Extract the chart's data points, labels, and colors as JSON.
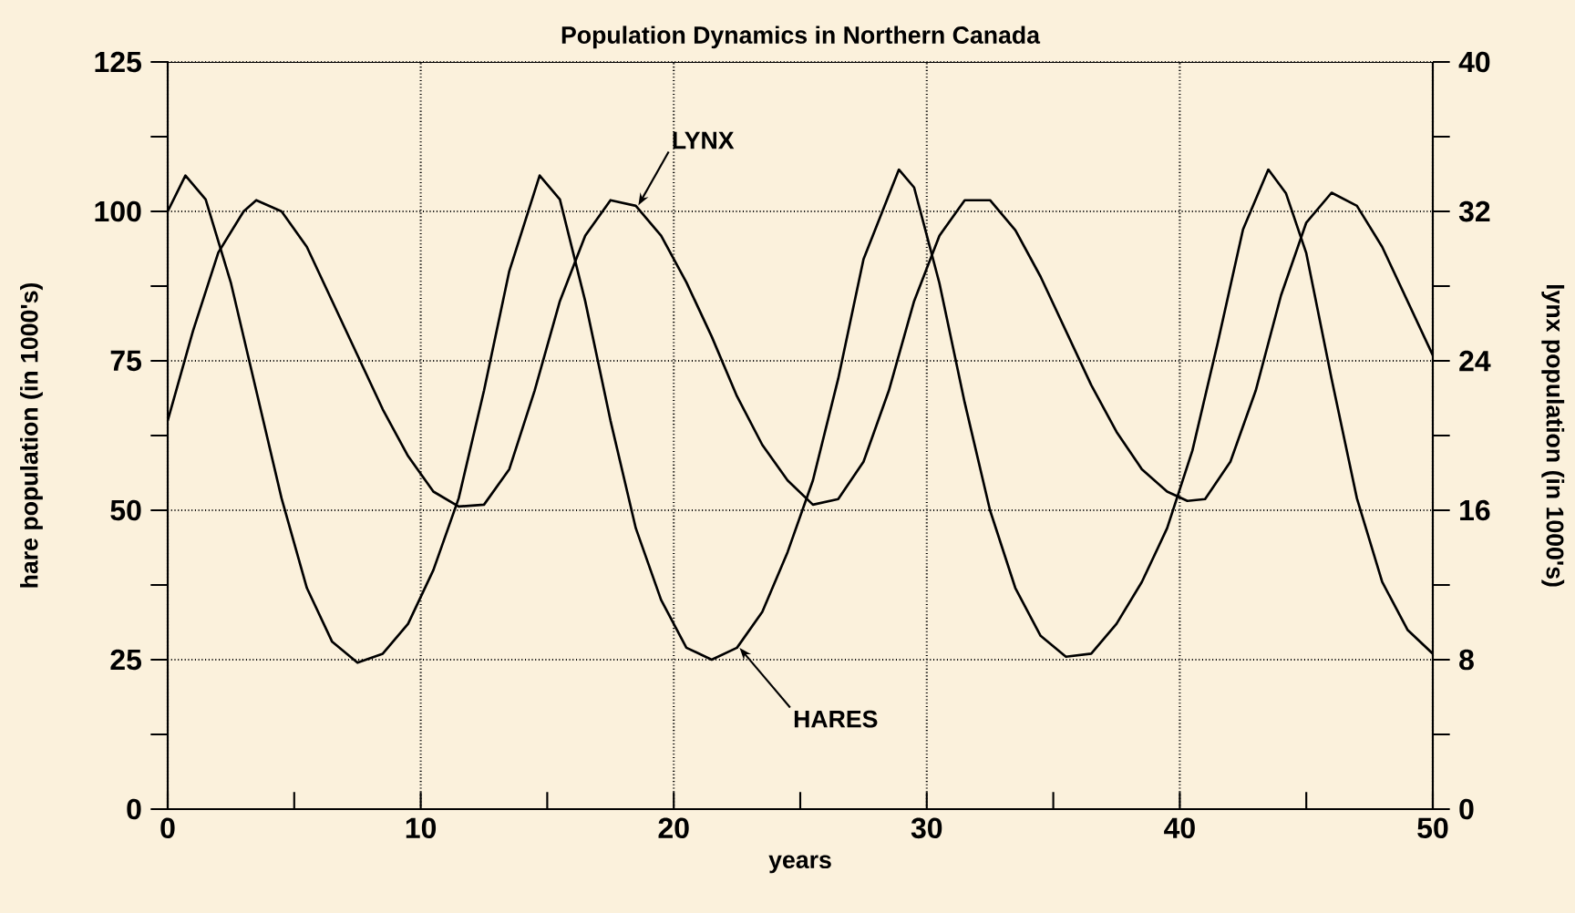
{
  "chart_data": {
    "type": "line",
    "title": "Population Dynamics in Northern Canada",
    "xlabel": "years",
    "ylabel": "hare population (in 1000's)",
    "y2label": "lynx population (in 1000's)",
    "xlim": [
      0,
      50
    ],
    "xticks": [
      0,
      {
        "value": 5,
        "label": null
      },
      10,
      {
        "value": 15,
        "label": null
      },
      20,
      {
        "value": 25,
        "label": null
      },
      30,
      {
        "value": 35,
        "label": null
      },
      40,
      {
        "value": 45,
        "label": null
      },
      50
    ],
    "ylim": [
      0,
      125
    ],
    "yticks": [
      0,
      {
        "value": 12.5,
        "label": null
      },
      25,
      {
        "value": 37.5,
        "label": null
      },
      50,
      {
        "value": 62.5,
        "label": null
      },
      75,
      {
        "value": 87.5,
        "label": null
      },
      100,
      {
        "value": 112.5,
        "label": null
      },
      125
    ],
    "y2lim": [
      0,
      40
    ],
    "y2ticks": [
      0,
      {
        "value": 4,
        "label": null
      },
      8,
      {
        "value": 12,
        "label": null
      },
      16,
      {
        "value": 20,
        "label": null
      },
      24,
      {
        "value": 28,
        "label": null
      },
      32,
      {
        "value": 36,
        "label": null
      },
      40
    ],
    "grid": true,
    "series": [
      {
        "color": "#000000",
        "x": [
          0,
          0.7,
          1.5,
          2.5,
          3.5,
          4.5,
          5.5,
          6.5,
          7.5,
          8.5,
          9.5,
          10.5,
          11.5,
          12.5,
          13.5,
          14.7,
          15.5,
          16.5,
          17.5,
          18.5,
          19.5,
          20.5,
          21.5,
          22.5,
          23.5,
          24.5,
          25.5,
          26.5,
          27.5,
          28.9,
          29.5,
          30.5,
          31.5,
          32.5,
          33.5,
          34.5,
          35.5,
          36.5,
          37.5,
          38.5,
          39.5,
          40.5,
          41.5,
          42.5,
          43.5,
          44.2,
          45,
          46,
          47,
          48,
          49,
          50
        ],
        "values": [
          100,
          106,
          102,
          88,
          70,
          52,
          37,
          28,
          24.5,
          26,
          31,
          40,
          52,
          70,
          90,
          106,
          102,
          85,
          65,
          47,
          35,
          27,
          25,
          27,
          33,
          43,
          55,
          72,
          92,
          107,
          104,
          88,
          68,
          50,
          37,
          29,
          25.5,
          26,
          31,
          38,
          47,
          60,
          78,
          97,
          107,
          103,
          93,
          72,
          52,
          38,
          30,
          26
        ]
      },
      {
        "color": "#000000",
        "axis": "y2",
        "x": [
          0,
          1,
          2,
          3,
          3.5,
          4.5,
          5.5,
          6.5,
          7.5,
          8.5,
          9.5,
          10.5,
          11.5,
          12.5,
          13.5,
          14.5,
          15.5,
          16.5,
          17.5,
          18.5,
          19.5,
          20.5,
          21.5,
          22.5,
          23.5,
          24.5,
          25.5,
          26.5,
          27.5,
          28.5,
          29.5,
          30.5,
          31.5,
          32.5,
          33.5,
          34.5,
          35.5,
          36.5,
          37.5,
          38.5,
          39.5,
          40.3,
          41,
          42,
          43,
          44,
          45,
          46,
          47,
          48,
          49,
          50
        ],
        "values": [
          20.8,
          25.6,
          29.8,
          32,
          32.6,
          32,
          30.1,
          27.2,
          24.3,
          21.4,
          18.9,
          17,
          16.2,
          16.3,
          18.2,
          22.4,
          27.2,
          30.7,
          32.6,
          32.3,
          30.7,
          28.2,
          25.3,
          22.1,
          19.5,
          17.6,
          16.3,
          16.6,
          18.6,
          22.4,
          27.2,
          30.7,
          32.6,
          32.6,
          31,
          28.5,
          25.6,
          22.7,
          20.2,
          18.2,
          17,
          16.5,
          16.6,
          18.6,
          22.4,
          27.5,
          31.4,
          33,
          32.3,
          30.1,
          27.2,
          24.3
        ]
      }
    ],
    "annotations": [
      {
        "text": "LYNX",
        "x": 18.6,
        "y": 101
      },
      {
        "text": "HARES",
        "x": 22.6,
        "y": 27
      }
    ]
  }
}
